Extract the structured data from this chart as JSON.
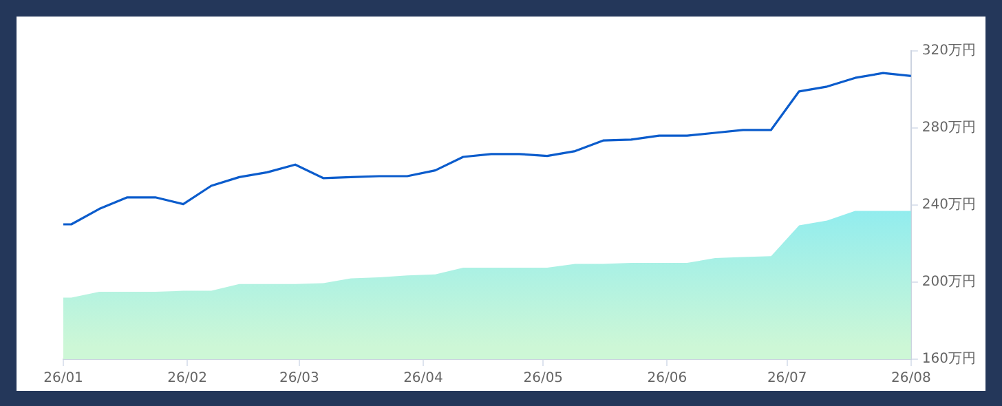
{
  "chart_data": {
    "type": "line",
    "x": [
      "--01-01",
      "--01-03",
      "--01-10",
      "--01-17",
      "--01-24",
      "--01-31",
      "--02-07",
      "--02-14",
      "--02-21",
      "--02-28",
      "--03-07",
      "--03-14",
      "--03-21",
      "--03-28",
      "--04-04",
      "--04-11",
      "--04-18",
      "--04-25",
      "--05-02",
      "--05-09",
      "--05-16",
      "--05-23",
      "--05-30",
      "--06-06",
      "--06-13",
      "--06-20",
      "--06-27",
      "--07-04",
      "--07-11",
      "--07-18",
      "--07-25",
      "--08-01"
    ],
    "series": [
      {
        "type": "area",
        "color": "#7ee9f6",
        "values": [
          192,
          192,
          195,
          195,
          195,
          195.5,
          195.5,
          199,
          199,
          199,
          199.5,
          202,
          202.5,
          203.5,
          204,
          207.5,
          207.5,
          207.5,
          207.5,
          209.5,
          209.5,
          210,
          210,
          210,
          212.5,
          213,
          213.5,
          229.5,
          232,
          237,
          237,
          237
        ]
      },
      {
        "type": "line",
        "color": "#0b5ccc",
        "values": [
          230,
          230,
          238,
          244,
          244,
          240.5,
          250,
          254.5,
          257,
          261,
          254,
          254.5,
          255,
          255,
          258,
          265,
          266.5,
          266.5,
          265.5,
          268,
          273.5,
          274,
          276,
          276,
          277.5,
          279,
          279,
          299,
          301.5,
          306,
          308.5,
          307
        ]
      }
    ],
    "xlim": [
      "--01-01",
      "--08-01"
    ],
    "xticks": [
      {
        "value": "--01-01",
        "label": "26/01"
      },
      {
        "value": "--02-01",
        "label": "26/02"
      },
      {
        "value": "--03-01",
        "label": "26/03"
      },
      {
        "value": "--04-01",
        "label": "26/04"
      },
      {
        "value": "--05-01",
        "label": "26/05"
      },
      {
        "value": "--06-01",
        "label": "26/06"
      },
      {
        "value": "--07-01",
        "label": "26/07"
      },
      {
        "value": "--08-01",
        "label": "26/08"
      }
    ],
    "ylim": [
      160,
      320
    ],
    "yticks": [
      {
        "value": 160,
        "label": "160万円"
      },
      {
        "value": 200,
        "label": "200万円"
      },
      {
        "value": 240,
        "label": "240万円"
      },
      {
        "value": 280,
        "label": "280万円"
      },
      {
        "value": 320,
        "label": "320万円"
      }
    ],
    "grid": false,
    "legend": false,
    "marker": "none",
    "line_style": "solid"
  }
}
